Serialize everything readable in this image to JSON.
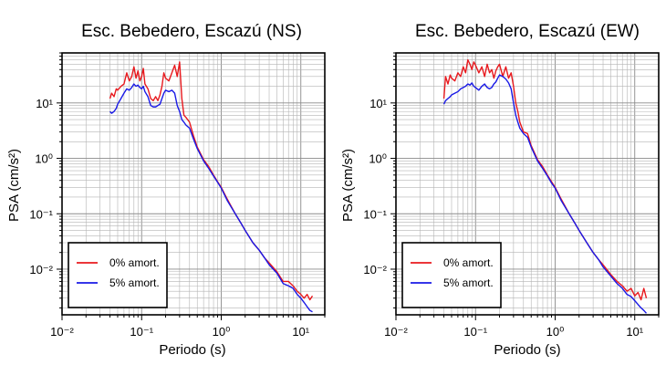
{
  "chart_data": [
    {
      "type": "line",
      "title": "Esc. Bebedero, Escazú (NS)",
      "xlabel": "Periodo (s)",
      "ylabel": "PSA (cm/s²)",
      "x_scale": "log",
      "y_scale": "log",
      "xlim": [
        0.01,
        20
      ],
      "ylim": [
        0.0015,
        80
      ],
      "x_ticks": [
        "10⁻²",
        "10⁻¹",
        "10⁰",
        "10¹"
      ],
      "y_ticks": [
        "10⁻²",
        "10⁻¹",
        "10⁰",
        "10¹"
      ],
      "grid": true,
      "legend_position": "bottom-left",
      "series": [
        {
          "name": "0% amort.",
          "color": "#e8191e",
          "x": [
            0.04,
            0.042,
            0.045,
            0.048,
            0.05,
            0.055,
            0.06,
            0.065,
            0.07,
            0.075,
            0.08,
            0.085,
            0.09,
            0.095,
            0.1,
            0.105,
            0.11,
            0.12,
            0.13,
            0.14,
            0.15,
            0.16,
            0.17,
            0.18,
            0.19,
            0.2,
            0.22,
            0.24,
            0.26,
            0.28,
            0.3,
            0.32,
            0.34,
            0.36,
            0.4,
            0.45,
            0.5,
            0.6,
            0.7,
            0.8,
            0.9,
            1.0,
            1.2,
            1.5,
            1.8,
            2.0,
            2.5,
            3.0,
            3.5,
            4.0,
            5.0,
            6.0,
            7.0,
            8.0,
            9.0,
            10.0,
            11.0,
            12.0,
            13.0,
            14.0
          ],
          "y": [
            12,
            15,
            13,
            18,
            17,
            20,
            22,
            35,
            25,
            30,
            45,
            28,
            38,
            25,
            30,
            42,
            22,
            18,
            12,
            11,
            13,
            11,
            14,
            20,
            35,
            28,
            25,
            35,
            48,
            30,
            55,
            12,
            6,
            5.5,
            4.5,
            2.5,
            1.6,
            0.95,
            0.7,
            0.5,
            0.38,
            0.3,
            0.18,
            0.1,
            0.065,
            0.05,
            0.03,
            0.022,
            0.016,
            0.013,
            0.009,
            0.006,
            0.006,
            0.005,
            0.004,
            0.0035,
            0.003,
            0.0035,
            0.0028,
            0.0033
          ]
        },
        {
          "name": "5% amort.",
          "color": "#1919e6",
          "x": [
            0.04,
            0.042,
            0.045,
            0.048,
            0.05,
            0.055,
            0.06,
            0.065,
            0.07,
            0.075,
            0.08,
            0.085,
            0.09,
            0.095,
            0.1,
            0.105,
            0.11,
            0.12,
            0.13,
            0.14,
            0.15,
            0.16,
            0.17,
            0.18,
            0.19,
            0.2,
            0.22,
            0.24,
            0.26,
            0.28,
            0.3,
            0.32,
            0.34,
            0.36,
            0.4,
            0.45,
            0.5,
            0.6,
            0.7,
            0.8,
            0.9,
            1.0,
            1.2,
            1.5,
            1.8,
            2.0,
            2.5,
            3.0,
            3.5,
            4.0,
            5.0,
            6.0,
            7.0,
            8.0,
            9.0,
            10.0,
            11.0,
            12.0,
            13.0,
            14.0
          ],
          "y": [
            7,
            6.5,
            7,
            8,
            9.5,
            12,
            15,
            18,
            17,
            19,
            22,
            20,
            21,
            19,
            18,
            20,
            16,
            13,
            9,
            8.5,
            8.5,
            9,
            9.5,
            12,
            15,
            17,
            16,
            17,
            15,
            9,
            7,
            5,
            4.5,
            4,
            3.5,
            2.2,
            1.5,
            0.9,
            0.65,
            0.48,
            0.37,
            0.29,
            0.17,
            0.1,
            0.065,
            0.05,
            0.03,
            0.022,
            0.016,
            0.012,
            0.0085,
            0.0055,
            0.005,
            0.0045,
            0.0035,
            0.003,
            0.0025,
            0.0021,
            0.0018,
            0.0017
          ]
        }
      ]
    },
    {
      "type": "line",
      "title": "Esc. Bebedero, Escazú (EW)",
      "xlabel": "Periodo (s)",
      "ylabel": "PSA (cm/s²)",
      "x_scale": "log",
      "y_scale": "log",
      "xlim": [
        0.01,
        20
      ],
      "ylim": [
        0.0015,
        80
      ],
      "x_ticks": [
        "10⁻²",
        "10⁻¹",
        "10⁰",
        "10¹"
      ],
      "y_ticks": [
        "10⁻²",
        "10⁻¹",
        "10⁰",
        "10¹"
      ],
      "grid": true,
      "legend_position": "bottom-left",
      "series": [
        {
          "name": "0% amort.",
          "color": "#e8191e",
          "x": [
            0.04,
            0.042,
            0.045,
            0.048,
            0.05,
            0.055,
            0.06,
            0.065,
            0.07,
            0.075,
            0.08,
            0.085,
            0.09,
            0.095,
            0.1,
            0.11,
            0.12,
            0.13,
            0.14,
            0.15,
            0.16,
            0.17,
            0.18,
            0.19,
            0.2,
            0.22,
            0.24,
            0.26,
            0.28,
            0.3,
            0.32,
            0.34,
            0.36,
            0.4,
            0.45,
            0.5,
            0.6,
            0.7,
            0.8,
            0.9,
            1.0,
            1.2,
            1.5,
            1.8,
            2.0,
            2.5,
            3.0,
            3.5,
            4.0,
            5.0,
            6.0,
            7.0,
            8.0,
            9.0,
            10.0,
            11.0,
            12.0,
            13.0,
            14.0
          ],
          "y": [
            12,
            30,
            22,
            32,
            28,
            25,
            35,
            30,
            45,
            35,
            60,
            50,
            40,
            55,
            48,
            35,
            45,
            30,
            50,
            35,
            40,
            28,
            38,
            45,
            50,
            30,
            45,
            28,
            35,
            20,
            10,
            7,
            4.5,
            3,
            2.8,
            1.7,
            0.95,
            0.7,
            0.5,
            0.38,
            0.3,
            0.18,
            0.1,
            0.065,
            0.05,
            0.03,
            0.02,
            0.015,
            0.012,
            0.008,
            0.006,
            0.005,
            0.004,
            0.0045,
            0.0033,
            0.0038,
            0.0028,
            0.0045,
            0.003
          ]
        },
        {
          "name": "5% amort.",
          "color": "#1919e6",
          "x": [
            0.04,
            0.042,
            0.045,
            0.048,
            0.05,
            0.055,
            0.06,
            0.065,
            0.07,
            0.075,
            0.08,
            0.085,
            0.09,
            0.095,
            0.1,
            0.11,
            0.12,
            0.13,
            0.14,
            0.15,
            0.16,
            0.17,
            0.18,
            0.19,
            0.2,
            0.22,
            0.24,
            0.26,
            0.28,
            0.3,
            0.32,
            0.34,
            0.36,
            0.4,
            0.45,
            0.5,
            0.6,
            0.7,
            0.8,
            0.9,
            1.0,
            1.2,
            1.5,
            1.8,
            2.0,
            2.5,
            3.0,
            3.5,
            4.0,
            5.0,
            6.0,
            7.0,
            8.0,
            9.0,
            10.0,
            11.0,
            12.0,
            13.0,
            14.0
          ],
          "y": [
            9.5,
            11,
            12,
            13,
            14,
            15,
            16,
            18,
            19,
            20,
            22,
            21,
            23,
            20,
            19,
            17,
            20,
            22,
            19,
            18,
            19,
            22,
            24,
            28,
            32,
            30,
            27,
            23,
            18,
            10,
            6,
            4.5,
            3.5,
            2.8,
            2.4,
            1.6,
            0.9,
            0.65,
            0.48,
            0.36,
            0.29,
            0.17,
            0.1,
            0.065,
            0.05,
            0.03,
            0.02,
            0.015,
            0.011,
            0.0075,
            0.0055,
            0.0045,
            0.0035,
            0.0032,
            0.0027,
            0.0023,
            0.002,
            0.0018,
            0.0016
          ]
        }
      ]
    }
  ]
}
